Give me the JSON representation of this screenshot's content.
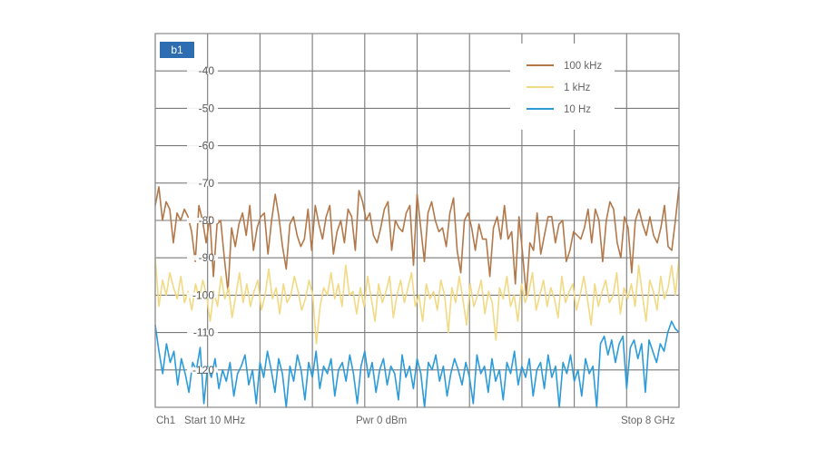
{
  "chart_data": {
    "type": "line",
    "badge": "b1",
    "ylim": [
      -130,
      -30
    ],
    "yticks": [
      "-40",
      "-50",
      "-60",
      "-70",
      "-80",
      "-90",
      "-100",
      "-110",
      "-120"
    ],
    "ytick_values": [
      -40,
      -50,
      -60,
      -70,
      -80,
      -90,
      -100,
      -110,
      -120
    ],
    "xlim_ghz": [
      0.01,
      8
    ],
    "x_divisions": 10,
    "grid": true,
    "legend_position": "top-right",
    "footer": {
      "channel": "Ch1",
      "start": "Start 10 MHz",
      "power": "Pwr 0 dBm",
      "stop": "Stop 8 GHz"
    },
    "series": [
      {
        "name": "100 kHz",
        "color": "#b3784a",
        "values": [
          -76,
          -71,
          -80,
          -75,
          -77,
          -86,
          -78,
          -80,
          -77,
          -79,
          -83,
          -91,
          -76,
          -80,
          -86,
          -79,
          -95,
          -81,
          -80,
          -90,
          -99,
          -82,
          -87,
          -81,
          -78,
          -84,
          -76,
          -88,
          -82,
          -79,
          -78,
          -89,
          -80,
          -73,
          -79,
          -87,
          -93,
          -81,
          -79,
          -84,
          -87,
          -85,
          -77,
          -88,
          -76,
          -81,
          -85,
          -79,
          -76,
          -89,
          -83,
          -80,
          -86,
          -77,
          -79,
          -88,
          -72,
          -75,
          -80,
          -78,
          -84,
          -86,
          -82,
          -77,
          -75,
          -88,
          -80,
          -82,
          -83,
          -78,
          -76,
          -92,
          -73,
          -82,
          -91,
          -78,
          -75,
          -80,
          -83,
          -82,
          -87,
          -78,
          -74,
          -88,
          -94,
          -80,
          -78,
          -82,
          -88,
          -81,
          -85,
          -85,
          -95,
          -82,
          -79,
          -85,
          -76,
          -85,
          -83,
          -97,
          -79,
          -89,
          -100,
          -86,
          -88,
          -78,
          -89,
          -84,
          -79,
          -79,
          -86,
          -81,
          -80,
          -91,
          -88,
          -83,
          -84,
          -85,
          -82,
          -77,
          -86,
          -77,
          -80,
          -91,
          -80,
          -75,
          -77,
          -86,
          -90,
          -79,
          -82,
          -94,
          -80,
          -77,
          -81,
          -84,
          -79,
          -84,
          -86,
          -82,
          -76,
          -87,
          -88,
          -80,
          -71
        ]
      },
      {
        "name": "1 kHz",
        "color": "#f2d983",
        "values": [
          -90,
          -103,
          -96,
          -100,
          -94,
          -98,
          -101,
          -95,
          -102,
          -99,
          -104,
          -97,
          -101,
          -96,
          -100,
          -107,
          -99,
          -103,
          -95,
          -101,
          -98,
          -106,
          -100,
          -94,
          -102,
          -97,
          -103,
          -99,
          -96,
          -104,
          -100,
          -93,
          -101,
          -98,
          -105,
          -97,
          -102,
          -100,
          -95,
          -99,
          -104,
          -101,
          -96,
          -100,
          -113,
          -103,
          -98,
          -100,
          -94,
          -101,
          -97,
          -103,
          -92,
          -100,
          -99,
          -105,
          -98,
          -103,
          -95,
          -101,
          -107,
          -97,
          -102,
          -99,
          -95,
          -106,
          -100,
          -96,
          -102,
          -98,
          -94,
          -103,
          -100,
          -107,
          -97,
          -101,
          -99,
          -104,
          -96,
          -100,
          -110,
          -98,
          -102,
          -95,
          -101,
          -108,
          -97,
          -103,
          -100,
          -96,
          -105,
          -99,
          -102,
          -112,
          -98,
          -101,
          -95,
          -103,
          -100,
          -107,
          -97,
          -102,
          -99,
          -94,
          -104,
          -100,
          -96,
          -103,
          -98,
          -101,
          -106,
          -95,
          -102,
          -99,
          -97,
          -104,
          -100,
          -95,
          -101,
          -108,
          -97,
          -103,
          -99,
          -96,
          -102,
          -100,
          -94,
          -105,
          -98,
          -101,
          -97,
          -103,
          -92,
          -100,
          -107,
          -96,
          -99,
          -104,
          -95,
          -101,
          -98,
          -92,
          -100,
          -90
        ]
      },
      {
        "name": "10 Hz",
        "color": "#2c9bd9",
        "values": [
          -108,
          -115,
          -121,
          -113,
          -118,
          -115,
          -124,
          -117,
          -121,
          -126,
          -118,
          -120,
          -114,
          -129,
          -119,
          -122,
          -117,
          -125,
          -120,
          -123,
          -118,
          -127,
          -121,
          -119,
          -116,
          -124,
          -120,
          -129,
          -118,
          -122,
          -115,
          -120,
          -126,
          -117,
          -121,
          -130,
          -119,
          -123,
          -116,
          -120,
          -128,
          -118,
          -122,
          -115,
          -125,
          -119,
          -121,
          -117,
          -127,
          -120,
          -118,
          -123,
          -116,
          -121,
          -129,
          -119,
          -115,
          -122,
          -118,
          -126,
          -120,
          -117,
          -124,
          -119,
          -121,
          -128,
          -116,
          -122,
          -119,
          -125,
          -117,
          -121,
          -130,
          -118,
          -120,
          -116,
          -123,
          -119,
          -127,
          -121,
          -117,
          -120,
          -124,
          -118,
          -122,
          -129,
          -116,
          -121,
          -119,
          -126,
          -117,
          -123,
          -120,
          -128,
          -118,
          -121,
          -115,
          -124,
          -119,
          -122,
          -117,
          -127,
          -120,
          -118,
          -125,
          -116,
          -122,
          -119,
          -130,
          -118,
          -121,
          -116,
          -123,
          -120,
          -127,
          -117,
          -121,
          -119,
          -130,
          -113,
          -111,
          -116,
          -112,
          -118,
          -113,
          -111,
          -125,
          -114,
          -112,
          -117,
          -113,
          -126,
          -112,
          -115,
          -118,
          -113,
          -115,
          -110,
          -107,
          -109,
          -110
        ]
      }
    ]
  }
}
